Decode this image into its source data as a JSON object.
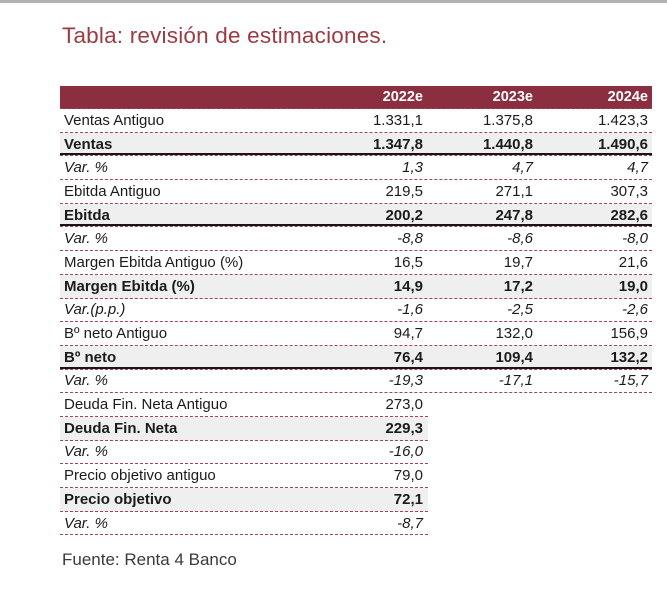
{
  "page": {
    "title": "Tabla: revisión de estimaciones.",
    "source": "Fuente: Renta 4 Banco"
  },
  "table": {
    "columns": [
      "2022e",
      "2023e",
      "2024e"
    ],
    "rows": [
      {
        "label": "Ventas Antiguo",
        "values": [
          "1.331,1",
          "1.375,8",
          "1.423,3"
        ],
        "emphasis": "normal",
        "short": false,
        "solid_underline": false
      },
      {
        "label": "Ventas",
        "values": [
          "1.347,8",
          "1.440,8",
          "1.490,6"
        ],
        "emphasis": "bold",
        "short": false,
        "solid_underline": true
      },
      {
        "label": "Var. %",
        "values": [
          "1,3",
          "4,7",
          "4,7"
        ],
        "emphasis": "italic",
        "short": false,
        "solid_underline": false
      },
      {
        "label": "Ebitda Antiguo",
        "values": [
          "219,5",
          "271,1",
          "307,3"
        ],
        "emphasis": "normal",
        "short": false,
        "solid_underline": false
      },
      {
        "label": "Ebitda",
        "values": [
          "200,2",
          "247,8",
          "282,6"
        ],
        "emphasis": "bold",
        "short": false,
        "solid_underline": true
      },
      {
        "label": "Var. %",
        "values": [
          "-8,8",
          "-8,6",
          "-8,0"
        ],
        "emphasis": "italic",
        "short": false,
        "solid_underline": false
      },
      {
        "label": "Margen Ebitda Antiguo (%)",
        "values": [
          "16,5",
          "19,7",
          "21,6"
        ],
        "emphasis": "normal",
        "short": false,
        "solid_underline": false
      },
      {
        "label": "Margen Ebitda (%)",
        "values": [
          "14,9",
          "17,2",
          "19,0"
        ],
        "emphasis": "bold",
        "short": false,
        "solid_underline": false
      },
      {
        "label": "Var.(p.p.)",
        "values": [
          "-1,6",
          "-2,5",
          "-2,6"
        ],
        "emphasis": "italic",
        "short": false,
        "solid_underline": false
      },
      {
        "label": "Bº neto Antiguo",
        "values": [
          "94,7",
          "132,0",
          "156,9"
        ],
        "emphasis": "normal",
        "short": false,
        "solid_underline": false
      },
      {
        "label": "Bº neto",
        "values": [
          "76,4",
          "109,4",
          "132,2"
        ],
        "emphasis": "bold",
        "short": false,
        "solid_underline": true
      },
      {
        "label": "Var. %",
        "values": [
          "-19,3",
          "-17,1",
          "-15,7"
        ],
        "emphasis": "italic",
        "short": false,
        "solid_underline": false
      },
      {
        "label": "Deuda Fin. Neta Antiguo",
        "values": [
          "273,0"
        ],
        "emphasis": "normal",
        "short": true,
        "solid_underline": false
      },
      {
        "label": "Deuda Fin. Neta",
        "values": [
          "229,3"
        ],
        "emphasis": "bold",
        "short": true,
        "solid_underline": false
      },
      {
        "label": "Var. %",
        "values": [
          "-16,0"
        ],
        "emphasis": "italic",
        "short": true,
        "solid_underline": false
      },
      {
        "label": "Precio objetivo antiguo",
        "values": [
          "79,0"
        ],
        "emphasis": "normal",
        "short": true,
        "solid_underline": false
      },
      {
        "label": "Precio objetivo",
        "values": [
          "72,1"
        ],
        "emphasis": "bold",
        "short": true,
        "solid_underline": false
      },
      {
        "label": "Var. %",
        "values": [
          "-8,7"
        ],
        "emphasis": "italic",
        "short": true,
        "solid_underline": false
      }
    ]
  },
  "colors": {
    "header_bg": "#8b2e40",
    "title": "#9c3b44",
    "dashed": "#a24556",
    "gray_row": "#efefef",
    "solid_line": "#161616",
    "text": "#1b1b1b",
    "footer": "#3a3a3a",
    "top_bar": "#b2b2b2"
  }
}
